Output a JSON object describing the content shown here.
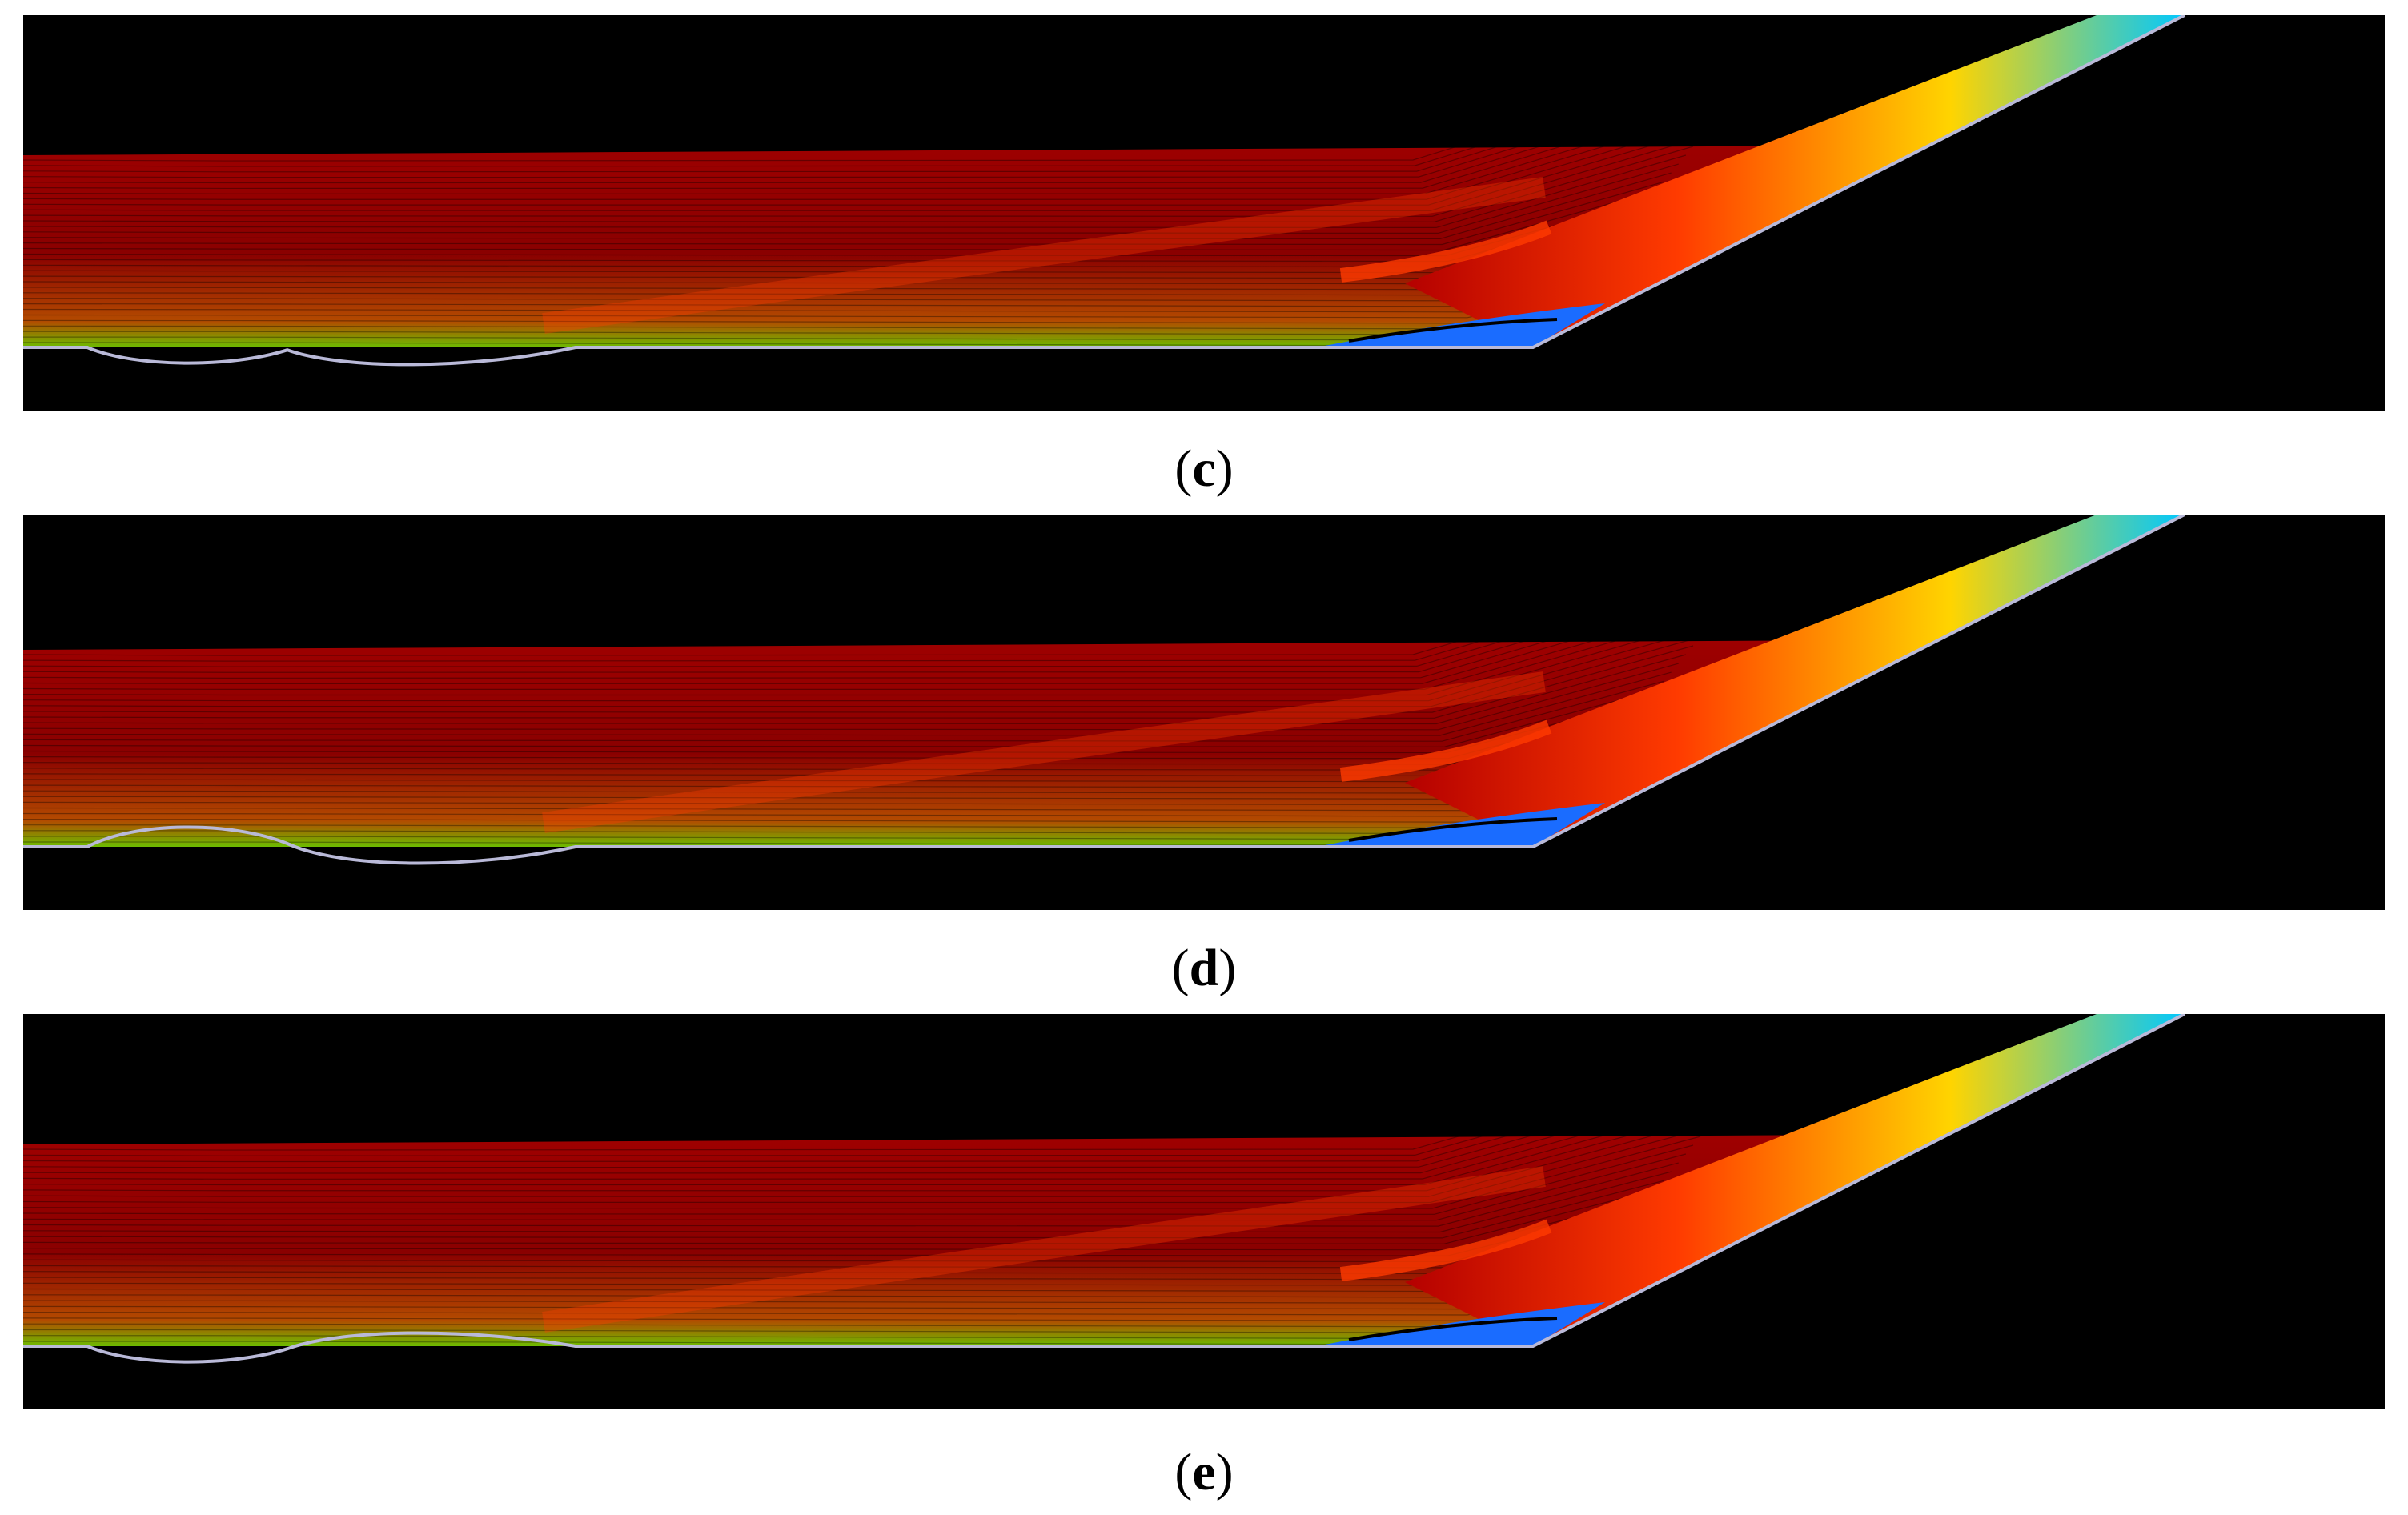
{
  "figure": {
    "panels": [
      {
        "id": "c",
        "label_open": "(",
        "label_letter": "c",
        "label_close": ")",
        "bump_up": 0,
        "bump_down": 1,
        "second_bump": 0
      },
      {
        "id": "d",
        "label_open": "(",
        "label_letter": "d",
        "label_close": ")",
        "bump_up": 1,
        "bump_down": 1,
        "second_bump": 0
      },
      {
        "id": "e",
        "label_open": "(",
        "label_letter": "e",
        "label_close": ")",
        "bump_up": 0,
        "bump_down": 1,
        "second_bump": 1
      }
    ],
    "colors": {
      "background": "#000000",
      "freestream": "#b40000",
      "shear_layer": "#ff3b00",
      "boundary_green": "#6dbb00",
      "jet_yellow": "#ffd400",
      "jet_edge": "#00c8ff",
      "recirculation": "#1a6cff",
      "wall": "#b9b9d8"
    }
  }
}
